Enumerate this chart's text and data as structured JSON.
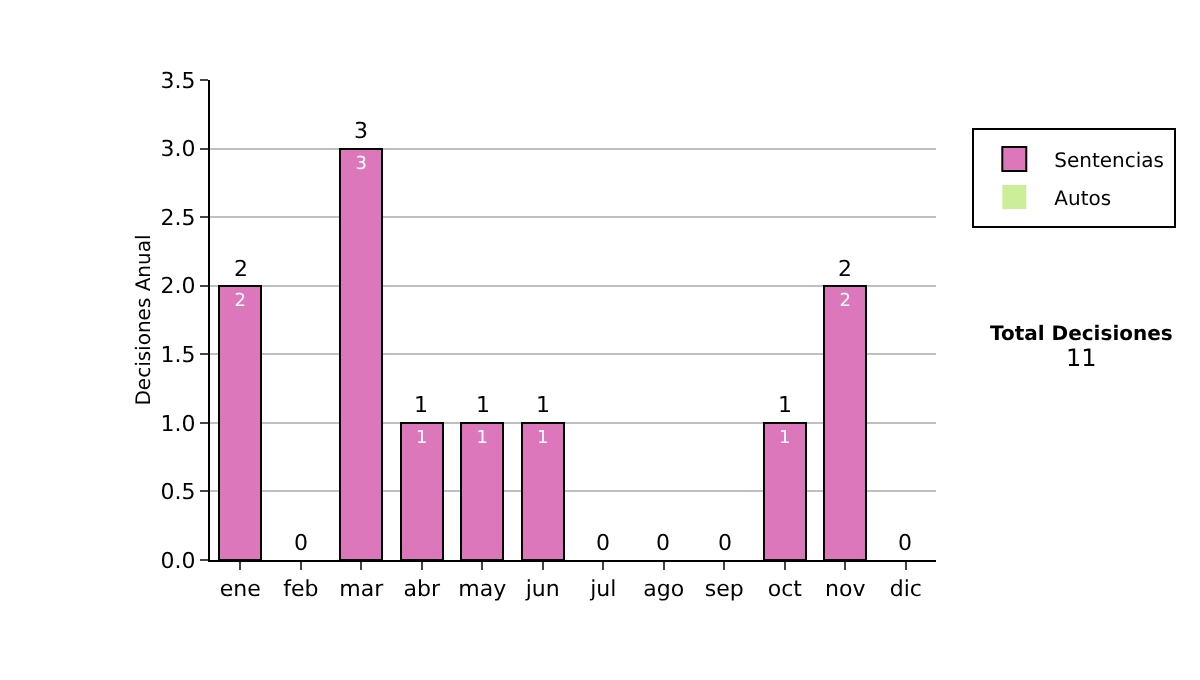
{
  "chart_data": {
    "type": "bar",
    "stacked": true,
    "ylabel": "Decisiones Anual",
    "categories": [
      "ene",
      "feb",
      "mar",
      "abr",
      "may",
      "jun",
      "jul",
      "ago",
      "sep",
      "oct",
      "nov",
      "dic"
    ],
    "series": [
      {
        "name": "Sentencias",
        "color": "#dd77bb",
        "values": [
          2,
          0,
          3,
          1,
          1,
          1,
          0,
          0,
          0,
          1,
          2,
          0
        ],
        "value_labels": [
          "2",
          null,
          "3",
          "1",
          "1",
          "1",
          null,
          null,
          null,
          "1",
          "2",
          null
        ]
      },
      {
        "name": "Autos",
        "color": "#ccee99",
        "values": [
          0,
          0,
          0,
          0,
          0,
          0,
          0,
          0,
          0,
          0,
          0,
          0
        ]
      }
    ],
    "totals": [
      "2",
      "0",
      "3",
      "1",
      "1",
      "1",
      "0",
      "0",
      "0",
      "1",
      "2",
      "0"
    ],
    "ylim": [
      0,
      3.5
    ],
    "yticks": [
      {
        "value": 0,
        "label": "0.0"
      },
      {
        "value": 0.5,
        "label": "0.5"
      },
      {
        "value": 1,
        "label": "1.0"
      },
      {
        "value": 1.5,
        "label": "1.5"
      },
      {
        "value": 2,
        "label": "2.0"
      },
      {
        "value": 2.5,
        "label": "2.5"
      },
      {
        "value": 3,
        "label": "3.0"
      },
      {
        "value": 3.5,
        "label": "3.5"
      }
    ],
    "grid": "y",
    "legend": "right",
    "annotations": [
      "Total Decisiones\n11"
    ]
  }
}
